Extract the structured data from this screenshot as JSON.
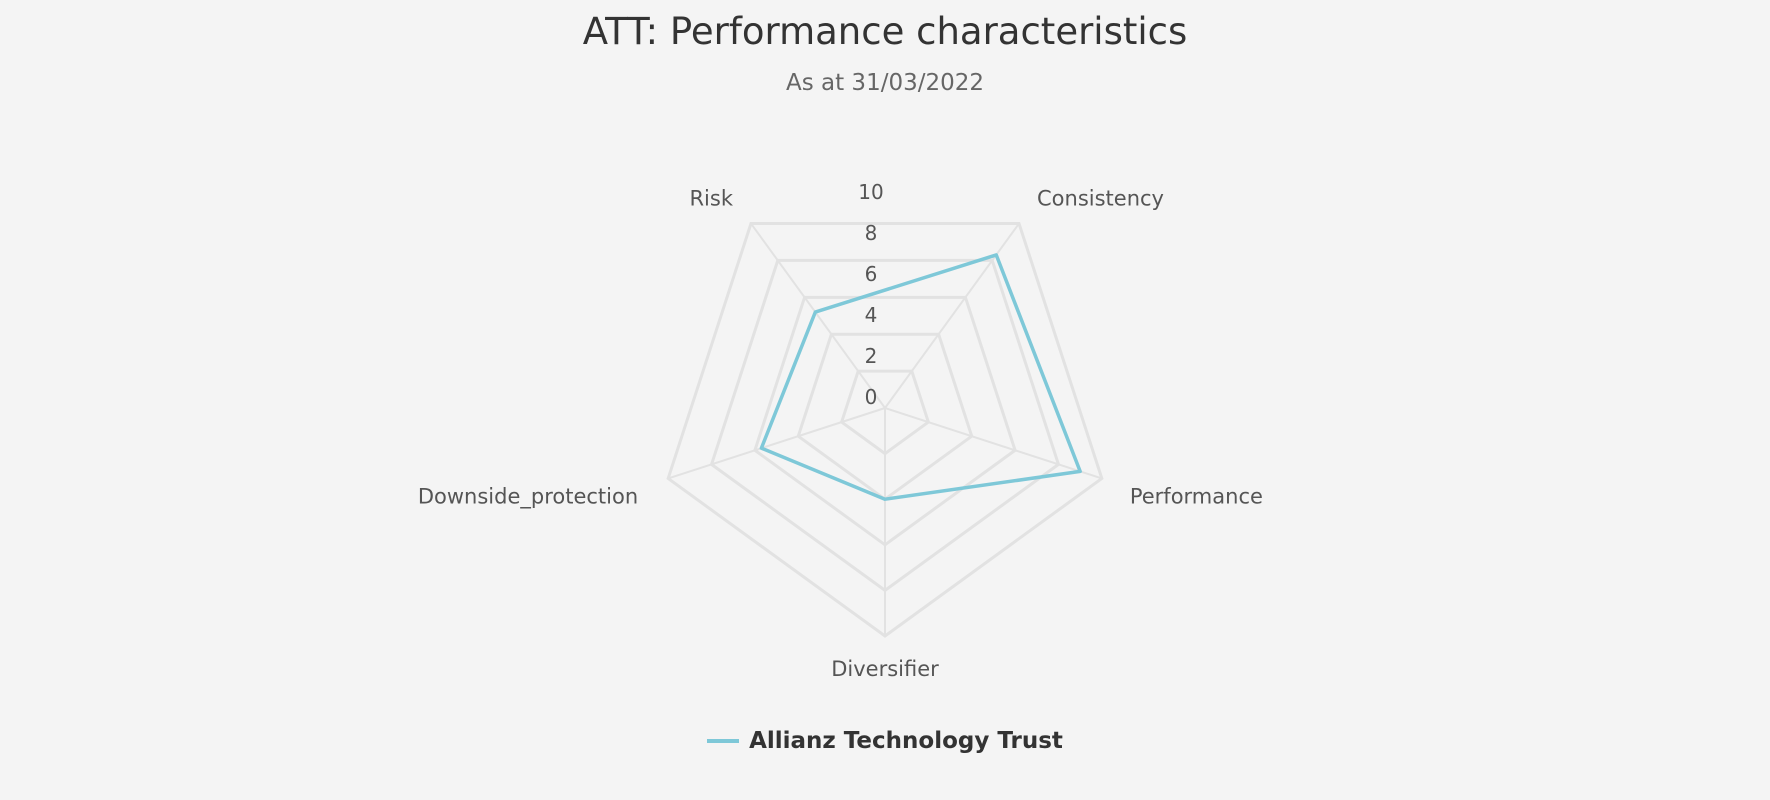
{
  "chart_data": {
    "type": "radar",
    "title": "ATT: Performance characteristics",
    "subtitle": "As at 31/03/2022",
    "axes": [
      "Consistency",
      "Performance",
      "Diversifier",
      "Downside_protection",
      "Risk"
    ],
    "rlim": [
      0,
      10
    ],
    "ticks": [
      "0",
      "2",
      "4",
      "6",
      "8",
      "10"
    ],
    "grid": true,
    "legend_position": "bottom",
    "series": [
      {
        "name": "Allianz Technology Trust",
        "color": "#7ec8d8",
        "values": [
          8.3,
          9.0,
          4.0,
          5.7,
          5.2
        ]
      }
    ]
  }
}
